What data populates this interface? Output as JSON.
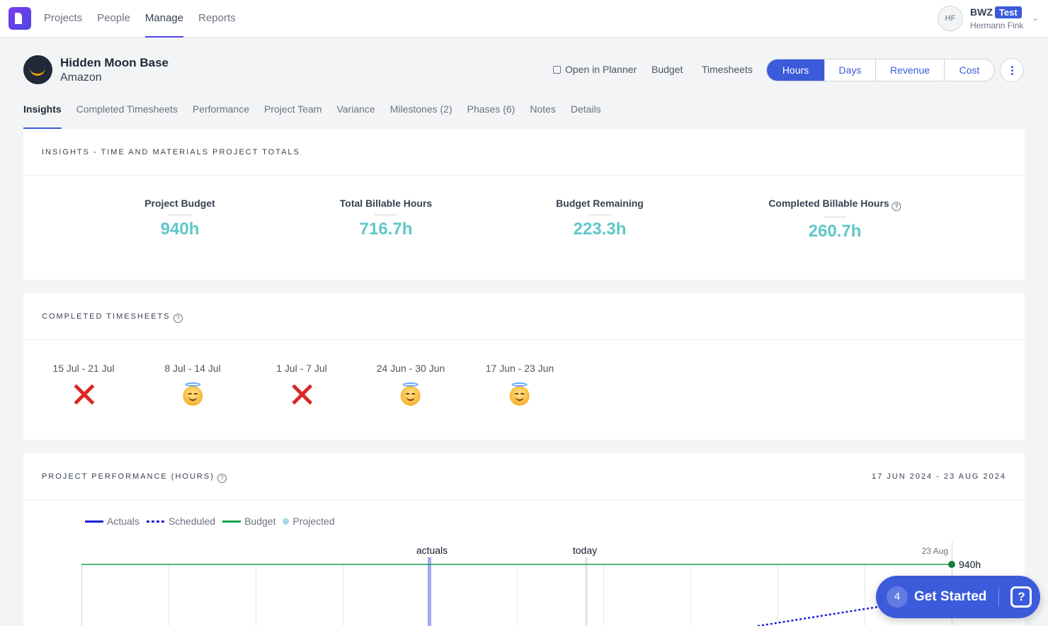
{
  "nav": {
    "items": [
      "Projects",
      "People",
      "Manage",
      "Reports"
    ],
    "active": "Manage"
  },
  "user": {
    "initials": "HF",
    "org": "BWZ",
    "badge": "Test",
    "name": "Hermann Fink"
  },
  "project": {
    "title": "Hidden Moon Base",
    "client": "Amazon"
  },
  "header_links": {
    "planner": "Open in Planner",
    "budget": "Budget",
    "timesheets": "Timesheets"
  },
  "segmented": {
    "options": [
      "Hours",
      "Days",
      "Revenue",
      "Cost"
    ],
    "active": "Hours"
  },
  "tabs": [
    "Insights",
    "Completed Timesheets",
    "Performance",
    "Project Team",
    "Variance",
    "Milestones (2)",
    "Phases (6)",
    "Notes",
    "Details"
  ],
  "insights": {
    "title": "INSIGHTS - TIME AND MATERIALS PROJECT TOTALS",
    "stats": [
      {
        "label": "Project Budget",
        "value": "940h"
      },
      {
        "label": "Total Billable Hours",
        "value": "716.7h"
      },
      {
        "label": "Budget Remaining",
        "value": "223.3h"
      },
      {
        "label": "Completed Billable Hours",
        "value": "260.7h"
      }
    ]
  },
  "completed_timesheets": {
    "title": "COMPLETED TIMESHEETS",
    "weeks": [
      {
        "label": "15 Jul - 21 Jul",
        "status": "missing"
      },
      {
        "label": "8 Jul - 14 Jul",
        "status": "complete"
      },
      {
        "label": "1 Jul - 7 Jul",
        "status": "missing"
      },
      {
        "label": "24 Jun - 30 Jun",
        "status": "complete"
      },
      {
        "label": "17 Jun - 23 Jun",
        "status": "complete"
      }
    ]
  },
  "performance": {
    "title": "PROJECT PERFORMANCE (HOURS)",
    "date_range": "17 JUN 2024 - 23 AUG 2024",
    "legend": [
      "Actuals",
      "Scheduled",
      "Budget",
      "Projected"
    ],
    "markers": {
      "actuals": "actuals",
      "today": "today",
      "end": "23 Aug"
    },
    "budget_label": "940h",
    "colors": {
      "actuals": "#1e1edc",
      "scheduled": "#1e1edc",
      "budget": "#16a34a",
      "projected": "#a5d8e6"
    }
  },
  "chart_data": {
    "type": "line",
    "series": [
      {
        "name": "Budget",
        "values": [
          940
        ]
      }
    ],
    "annotations": [
      "actuals",
      "today",
      "23 Aug",
      "940h"
    ]
  },
  "get_started": {
    "count": "4",
    "label": "Get Started"
  }
}
